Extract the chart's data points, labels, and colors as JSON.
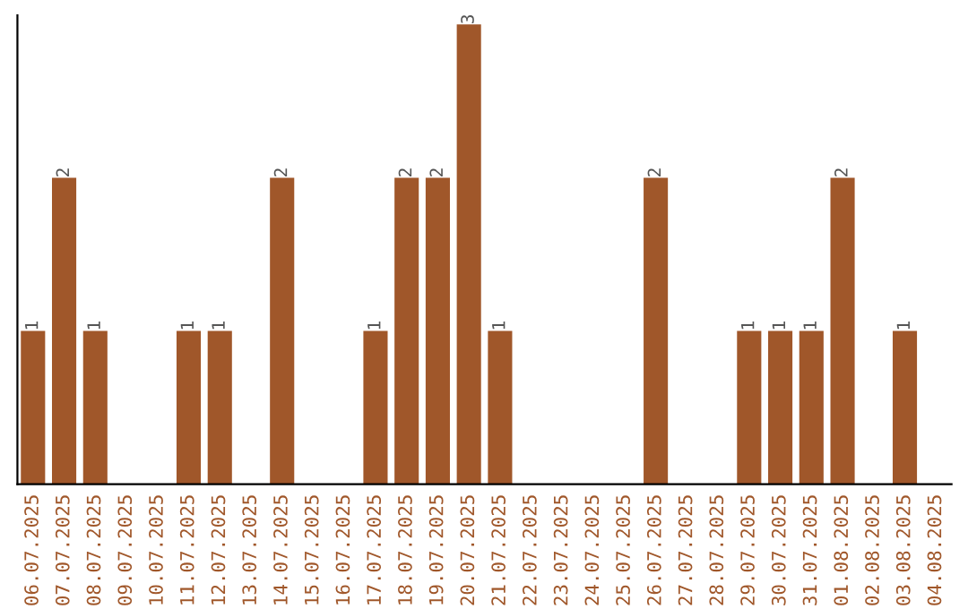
{
  "chart_data": {
    "type": "bar",
    "categories": [
      "06.07.2025",
      "07.07.2025",
      "08.07.2025",
      "09.07.2025",
      "10.07.2025",
      "11.07.2025",
      "12.07.2025",
      "13.07.2025",
      "14.07.2025",
      "15.07.2025",
      "16.07.2025",
      "17.07.2025",
      "18.07.2025",
      "19.07.2025",
      "20.07.2025",
      "21.07.2025",
      "22.07.2025",
      "23.07.2025",
      "24.07.2025",
      "25.07.2025",
      "26.07.2025",
      "27.07.2025",
      "28.07.2025",
      "29.07.2025",
      "30.07.2025",
      "31.07.2025",
      "01.08.2025",
      "02.08.2025",
      "03.08.2025",
      "04.08.2025"
    ],
    "values": [
      1,
      2,
      1,
      0,
      0,
      1,
      1,
      0,
      2,
      0,
      0,
      1,
      2,
      2,
      3,
      1,
      0,
      0,
      0,
      0,
      2,
      0,
      0,
      1,
      1,
      1,
      2,
      0,
      1,
      0
    ],
    "value_labels": [
      "1",
      "2",
      "1",
      null,
      null,
      "1",
      "1",
      null,
      "2",
      null,
      null,
      "1",
      "2",
      "2",
      "3",
      "1",
      null,
      null,
      null,
      null,
      "2",
      null,
      null,
      "1",
      "1",
      "1",
      "2",
      null,
      "1",
      null
    ],
    "color": "#a0572a",
    "grid": false
  }
}
